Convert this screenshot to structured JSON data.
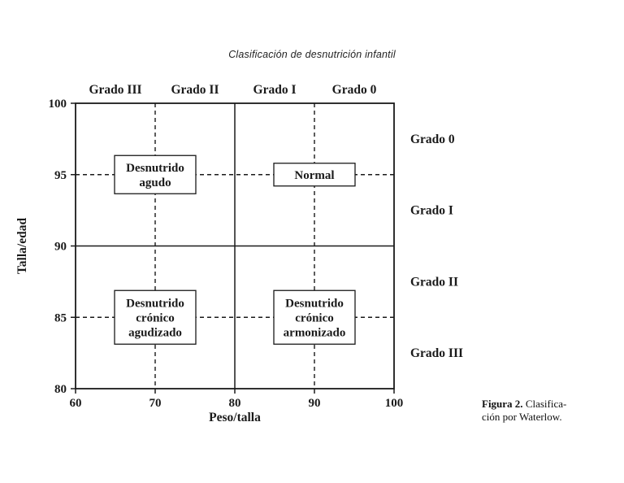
{
  "figure": {
    "title": "Clasificación de desnutrición infantil",
    "caption": {
      "label": "Figura 2.",
      "line1_rest": " Clasifica-",
      "line2": "ción por Waterlow."
    }
  },
  "chart_data": {
    "type": "diagram",
    "title": "Clasificación de desnutrición infantil",
    "xlabel": "Peso/talla",
    "ylabel": "Talla/edad",
    "xlim": [
      60,
      100
    ],
    "ylim": [
      80,
      100
    ],
    "xticks": [
      60,
      70,
      80,
      90,
      100
    ],
    "yticks": [
      80,
      85,
      90,
      95,
      100
    ],
    "grid": "off",
    "legend": "none",
    "solid_reference_lines": {
      "vertical_x": [
        80
      ],
      "horizontal_y": [
        90
      ]
    },
    "dashed_reference_lines": {
      "vertical_x": [
        70,
        90
      ],
      "horizontal_y": [
        95,
        85
      ]
    },
    "column_band_labels": [
      {
        "text": "Grado III",
        "x": 65
      },
      {
        "text": "Grado II",
        "x": 75
      },
      {
        "text": "Grado I",
        "x": 85
      },
      {
        "text": "Grado 0",
        "x": 95
      }
    ],
    "row_band_labels": [
      {
        "text": "Grado 0",
        "y": 97.5
      },
      {
        "text": "Grado I",
        "y": 92.5
      },
      {
        "text": "Grado II",
        "y": 87.5
      },
      {
        "text": "Grado III",
        "y": 82.5
      }
    ],
    "category_boxes": [
      {
        "lines": [
          "Desnutrido",
          "agudo"
        ],
        "x": 70,
        "y": 95
      },
      {
        "lines": [
          "Normal"
        ],
        "x": 90,
        "y": 95
      },
      {
        "lines": [
          "Desnutrido",
          "crónico",
          "agudizado"
        ],
        "x": 70,
        "y": 85
      },
      {
        "lines": [
          "Desnutrido",
          "crónico",
          "armonizado"
        ],
        "x": 90,
        "y": 85
      }
    ],
    "colors": {
      "line": "#1a1a1a",
      "text": "#1a1a1a",
      "background": "#ffffff"
    }
  }
}
